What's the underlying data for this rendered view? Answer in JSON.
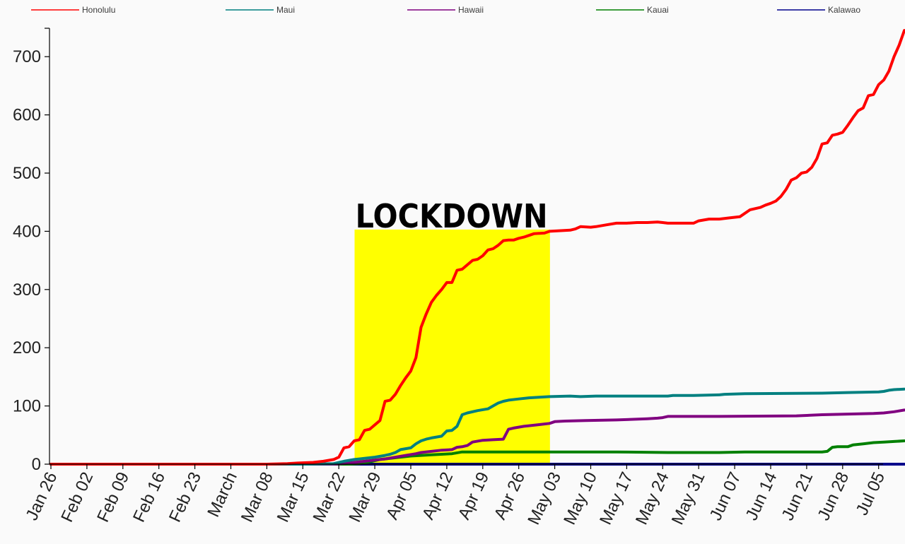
{
  "chart_data": {
    "type": "line",
    "title": "",
    "xlabel": "",
    "ylabel": "",
    "x_tick_labels": [
      "Jan 26",
      "Feb 02",
      "Feb 09",
      "Feb 16",
      "Feb 23",
      "March",
      "Mar 08",
      "Mar 15",
      "Mar 22",
      "Mar 29",
      "Apr 05",
      "Apr 12",
      "Apr 19",
      "Apr 26",
      "May 03",
      "May 10",
      "May 17",
      "May 24",
      "May 31",
      "Jun 07",
      "Jun 14",
      "Jun 21",
      "Jun 28",
      "Jul 05"
    ],
    "y_ticks": [
      0,
      100,
      200,
      300,
      400,
      500,
      600,
      700
    ],
    "y_tick_labels": [
      "0",
      "100",
      "200",
      "300",
      "400",
      "500",
      "600",
      "700"
    ],
    "ylim": [
      0,
      750
    ],
    "xlim_days": [
      0,
      161
    ],
    "grid": false,
    "legend_position": "top",
    "annotation": {
      "label": "LOCKDOWN",
      "x_start_day": 59,
      "x_end_day": 97,
      "y_top": 403,
      "color": "#ffff00"
    },
    "series": [
      {
        "name": "Honolulu",
        "color": "#ff0000",
        "points": [
          [
            0,
            0
          ],
          [
            42,
            0
          ],
          [
            46,
            1
          ],
          [
            48,
            2
          ],
          [
            51,
            3
          ],
          [
            53,
            5
          ],
          [
            55,
            8
          ],
          [
            56,
            12
          ],
          [
            57,
            28
          ],
          [
            58,
            30
          ],
          [
            59,
            40
          ],
          [
            60,
            42
          ],
          [
            61,
            58
          ],
          [
            62,
            60
          ],
          [
            64,
            75
          ],
          [
            65,
            108
          ],
          [
            66,
            110
          ],
          [
            67,
            120
          ],
          [
            68,
            135
          ],
          [
            69,
            148
          ],
          [
            70,
            160
          ],
          [
            71,
            183
          ],
          [
            72,
            235
          ],
          [
            73,
            258
          ],
          [
            74,
            278
          ],
          [
            75,
            290
          ],
          [
            76,
            300
          ],
          [
            77,
            312
          ],
          [
            78,
            312
          ],
          [
            79,
            333
          ],
          [
            80,
            335
          ],
          [
            82,
            350
          ],
          [
            83,
            352
          ],
          [
            84,
            358
          ],
          [
            85,
            368
          ],
          [
            86,
            370
          ],
          [
            87,
            376
          ],
          [
            88,
            384
          ],
          [
            89,
            385
          ],
          [
            90,
            385
          ],
          [
            91,
            388
          ],
          [
            92,
            390
          ],
          [
            93,
            393
          ],
          [
            94,
            396
          ],
          [
            96,
            397
          ],
          [
            97,
            400
          ],
          [
            101,
            402
          ],
          [
            102,
            404
          ],
          [
            103,
            408
          ],
          [
            105,
            407
          ],
          [
            106,
            408
          ],
          [
            108,
            411
          ],
          [
            110,
            414
          ],
          [
            112,
            414
          ],
          [
            114,
            415
          ],
          [
            116,
            415
          ],
          [
            118,
            416
          ],
          [
            119,
            415
          ],
          [
            120,
            414
          ],
          [
            125,
            414
          ],
          [
            126,
            418
          ],
          [
            128,
            421
          ],
          [
            130,
            421
          ],
          [
            132,
            423
          ],
          [
            134,
            425
          ],
          [
            136,
            437
          ],
          [
            138,
            441
          ],
          [
            139,
            445
          ],
          [
            140,
            448
          ],
          [
            141,
            452
          ],
          [
            142,
            460
          ],
          [
            143,
            472
          ],
          [
            144,
            488
          ],
          [
            145,
            492
          ],
          [
            146,
            500
          ],
          [
            147,
            502
          ],
          [
            148,
            510
          ],
          [
            149,
            525
          ],
          [
            150,
            550
          ],
          [
            151,
            552
          ],
          [
            152,
            565
          ],
          [
            153,
            567
          ],
          [
            154,
            570
          ],
          [
            155,
            582
          ],
          [
            156,
            595
          ],
          [
            157,
            607
          ],
          [
            158,
            612
          ],
          [
            159,
            633
          ],
          [
            160,
            635
          ],
          [
            161,
            652
          ],
          [
            162,
            660
          ],
          [
            163,
            675
          ],
          [
            164,
            700
          ],
          [
            165,
            720
          ],
          [
            166,
            745
          ]
        ]
      },
      {
        "name": "Maui",
        "color": "#008080",
        "points": [
          [
            0,
            0
          ],
          [
            50,
            0
          ],
          [
            55,
            1
          ],
          [
            57,
            5
          ],
          [
            59,
            8
          ],
          [
            61,
            10
          ],
          [
            63,
            12
          ],
          [
            65,
            15
          ],
          [
            66,
            17
          ],
          [
            67,
            20
          ],
          [
            68,
            25
          ],
          [
            70,
            28
          ],
          [
            71,
            35
          ],
          [
            72,
            40
          ],
          [
            73,
            43
          ],
          [
            74,
            45
          ],
          [
            76,
            48
          ],
          [
            77,
            57
          ],
          [
            78,
            58
          ],
          [
            79,
            65
          ],
          [
            80,
            85
          ],
          [
            81,
            88
          ],
          [
            83,
            92
          ],
          [
            85,
            95
          ],
          [
            86,
            100
          ],
          [
            87,
            105
          ],
          [
            88,
            108
          ],
          [
            89,
            110
          ],
          [
            91,
            112
          ],
          [
            93,
            114
          ],
          [
            95,
            115
          ],
          [
            97,
            116
          ],
          [
            101,
            117
          ],
          [
            103,
            116
          ],
          [
            106,
            117
          ],
          [
            120,
            117
          ],
          [
            121,
            118
          ],
          [
            125,
            118
          ],
          [
            130,
            119
          ],
          [
            131,
            120
          ],
          [
            135,
            121
          ],
          [
            150,
            122
          ],
          [
            155,
            123
          ],
          [
            161,
            124
          ],
          [
            162,
            125
          ],
          [
            163,
            127
          ],
          [
            164,
            128
          ],
          [
            166,
            129
          ]
        ]
      },
      {
        "name": "Hawaii",
        "color": "#800080",
        "points": [
          [
            0,
            0
          ],
          [
            55,
            0
          ],
          [
            58,
            2
          ],
          [
            61,
            5
          ],
          [
            63,
            7
          ],
          [
            65,
            9
          ],
          [
            67,
            12
          ],
          [
            69,
            15
          ],
          [
            71,
            18
          ],
          [
            72,
            20
          ],
          [
            74,
            22
          ],
          [
            76,
            24
          ],
          [
            78,
            25
          ],
          [
            79,
            29
          ],
          [
            80,
            30
          ],
          [
            81,
            32
          ],
          [
            82,
            38
          ],
          [
            84,
            41
          ],
          [
            86,
            42
          ],
          [
            88,
            43
          ],
          [
            89,
            60
          ],
          [
            90,
            62
          ],
          [
            92,
            65
          ],
          [
            93,
            66
          ],
          [
            95,
            68
          ],
          [
            97,
            70
          ],
          [
            98,
            73
          ],
          [
            100,
            74
          ],
          [
            104,
            75
          ],
          [
            110,
            76
          ],
          [
            116,
            78
          ],
          [
            118,
            79
          ],
          [
            119,
            80
          ],
          [
            120,
            82
          ],
          [
            125,
            82
          ],
          [
            128,
            82
          ],
          [
            130,
            82
          ],
          [
            145,
            83
          ],
          [
            150,
            85
          ],
          [
            155,
            86
          ],
          [
            160,
            87
          ],
          [
            162,
            88
          ],
          [
            164,
            90
          ],
          [
            166,
            93
          ]
        ]
      },
      {
        "name": "Kauai",
        "color": "#008000",
        "points": [
          [
            0,
            0
          ],
          [
            58,
            0
          ],
          [
            60,
            1
          ],
          [
            62,
            4
          ],
          [
            64,
            8
          ],
          [
            66,
            10
          ],
          [
            68,
            12
          ],
          [
            70,
            14
          ],
          [
            72,
            15
          ],
          [
            74,
            16
          ],
          [
            76,
            17
          ],
          [
            78,
            18
          ],
          [
            80,
            21
          ],
          [
            90,
            21
          ],
          [
            110,
            21
          ],
          [
            120,
            20
          ],
          [
            125,
            20
          ],
          [
            130,
            20
          ],
          [
            135,
            21
          ],
          [
            145,
            21
          ],
          [
            150,
            21
          ],
          [
            151,
            22
          ],
          [
            152,
            29
          ],
          [
            153,
            30
          ],
          [
            155,
            30
          ],
          [
            156,
            33
          ],
          [
            157,
            34
          ],
          [
            158,
            35
          ],
          [
            160,
            37
          ],
          [
            162,
            38
          ],
          [
            164,
            39
          ],
          [
            166,
            40
          ]
        ]
      },
      {
        "name": "Kalawao",
        "color": "#00008b",
        "points": [
          [
            0,
            0
          ],
          [
            166,
            0
          ]
        ]
      }
    ]
  }
}
